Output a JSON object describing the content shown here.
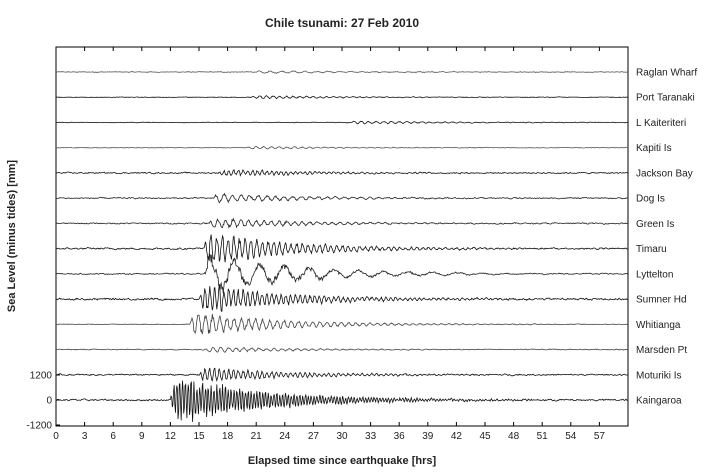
{
  "chart_data": {
    "type": "line",
    "title": "Chile tsunami: 27 Feb 2010",
    "xlabel": "Elapsed time since earthquake [hrs]",
    "ylabel": "Sea Level (minus tides) [mm]",
    "xlim": [
      0,
      60
    ],
    "x_ticks": [
      0,
      3,
      6,
      9,
      12,
      15,
      18,
      21,
      24,
      27,
      30,
      33,
      36,
      39,
      42,
      45,
      48,
      51,
      54,
      57
    ],
    "y_ticks": [
      {
        "label": "1200",
        "value": 1200
      },
      {
        "label": "0",
        "value": 0
      },
      {
        "label": "-1200",
        "value": -1200
      }
    ],
    "ylim_bottom_trace": [
      -1200,
      1200
    ],
    "grid": false,
    "series": [
      {
        "name": "Raglan Wharf",
        "arrival_hr": 21.0,
        "peak_amplitude_mm": 60,
        "period_hr": 1.2,
        "noise_mm": 25,
        "color": "#555555"
      },
      {
        "name": "Port Taranaki",
        "arrival_hr": 20.5,
        "peak_amplitude_mm": 70,
        "period_hr": 0.7,
        "noise_mm": 20,
        "color": "#111111"
      },
      {
        "name": "L Kaiteriteri",
        "arrival_hr": 31.0,
        "peak_amplitude_mm": 70,
        "period_hr": 0.8,
        "noise_mm": 20,
        "color": "#111111"
      },
      {
        "name": "Kapiti Is",
        "arrival_hr": 20.0,
        "peak_amplitude_mm": 60,
        "period_hr": 0.8,
        "noise_mm": 20,
        "color": "#555555"
      },
      {
        "name": "Jackson Bay",
        "arrival_hr": 17.0,
        "peak_amplitude_mm": 150,
        "period_hr": 0.5,
        "noise_mm": 45,
        "color": "#111111"
      },
      {
        "name": "Dog Is",
        "arrival_hr": 16.5,
        "peak_amplitude_mm": 200,
        "period_hr": 0.9,
        "noise_mm": 45,
        "color": "#222222"
      },
      {
        "name": "Green Is",
        "arrival_hr": 16.0,
        "peak_amplitude_mm": 220,
        "period_hr": 0.8,
        "noise_mm": 45,
        "color": "#222222"
      },
      {
        "name": "Timaru",
        "arrival_hr": 15.5,
        "peak_amplitude_mm": 650,
        "period_hr": 0.6,
        "noise_mm": 60,
        "color": "#111111"
      },
      {
        "name": "Lyttelton",
        "arrival_hr": 15.5,
        "peak_amplitude_mm": 900,
        "period_hr": 2.6,
        "noise_mm": 40,
        "color": "#222222"
      },
      {
        "name": "Sumner Hd",
        "arrival_hr": 15.0,
        "peak_amplitude_mm": 600,
        "period_hr": 0.5,
        "noise_mm": 70,
        "color": "#111111"
      },
      {
        "name": "Whitianga",
        "arrival_hr": 14.0,
        "peak_amplitude_mm": 500,
        "period_hr": 0.75,
        "noise_mm": 20,
        "color": "#444444"
      },
      {
        "name": "Marsden Pt",
        "arrival_hr": 15.5,
        "peak_amplitude_mm": 120,
        "period_hr": 0.8,
        "noise_mm": 30,
        "color": "#444444"
      },
      {
        "name": "Moturiki Is",
        "arrival_hr": 15.0,
        "peak_amplitude_mm": 300,
        "period_hr": 0.5,
        "noise_mm": 50,
        "color": "#111111"
      },
      {
        "name": "Kaingaroa",
        "arrival_hr": 12.0,
        "peak_amplitude_mm": 1100,
        "period_hr": 0.3,
        "noise_mm": 60,
        "color": "#111111"
      }
    ]
  }
}
